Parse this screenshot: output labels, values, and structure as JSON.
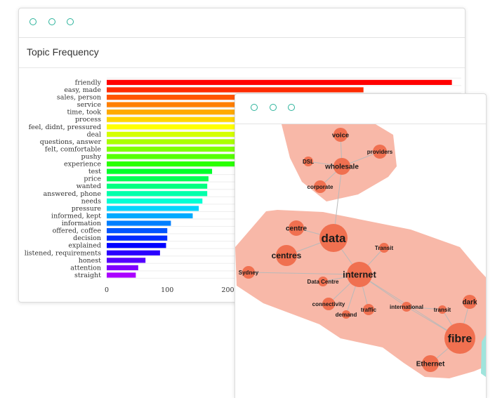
{
  "window_topic": {
    "title": "Topic Frequency"
  },
  "chart_data": {
    "type": "bar",
    "orientation": "horizontal",
    "title": "Topic Frequency",
    "categories": [
      "friendly",
      "easy, made",
      "sales, person",
      "service",
      "time, took",
      "process",
      "feel, didnt, pressured",
      "deal",
      "questions, answer",
      "felt, comfortable",
      "pushy",
      "experience",
      "test",
      "price",
      "wanted",
      "answered, phone",
      "needs",
      "pressure",
      "informed, kept",
      "information",
      "offered, coffee",
      "decision",
      "explained",
      "listened, requirements",
      "honest",
      "attention",
      "straight"
    ],
    "values": [
      570,
      424,
      380,
      372,
      362,
      352,
      344,
      336,
      236,
      232,
      230,
      226,
      174,
      168,
      166,
      166,
      158,
      152,
      142,
      106,
      100,
      100,
      98,
      88,
      64,
      52,
      48
    ],
    "colors": [
      "#ff0000",
      "#ff2a00",
      "#ff5500",
      "#ff7f00",
      "#ffaa00",
      "#ffd400",
      "#ffff00",
      "#d4ff00",
      "#aaff00",
      "#7fff00",
      "#55ff00",
      "#2aff00",
      "#00ff2a",
      "#00ff55",
      "#00ff7f",
      "#00ffaa",
      "#00ffd4",
      "#00d4ff",
      "#00aaff",
      "#007fff",
      "#0055ff",
      "#002aff",
      "#0000ff",
      "#2a00ff",
      "#5500ff",
      "#7f00ff",
      "#aa00ff"
    ],
    "x_ticks": [
      "0",
      "100",
      "200"
    ],
    "xlim": [
      0,
      600
    ],
    "grid": true
  },
  "network": {
    "cluster_color": "#f8b8a8",
    "node_color": "#f07050",
    "nodes": [
      {
        "id": "voice",
        "label": "voice"
      },
      {
        "id": "providers",
        "label": "providers"
      },
      {
        "id": "dsl",
        "label": "DSL"
      },
      {
        "id": "wholesale",
        "label": "wholesale"
      },
      {
        "id": "corporate",
        "label": "corporate"
      },
      {
        "id": "centre",
        "label": "centre"
      },
      {
        "id": "data",
        "label": "data"
      },
      {
        "id": "centres",
        "label": "centres"
      },
      {
        "id": "transit_cap",
        "label": "Transit"
      },
      {
        "id": "sydney",
        "label": "Sydney"
      },
      {
        "id": "internet",
        "label": "internet"
      },
      {
        "id": "datacentre",
        "label": "Data Centre"
      },
      {
        "id": "connectivity",
        "label": "connectivity"
      },
      {
        "id": "demand",
        "label": "demand"
      },
      {
        "id": "traffic",
        "label": "traffic"
      },
      {
        "id": "international",
        "label": "international"
      },
      {
        "id": "transit",
        "label": "transit"
      },
      {
        "id": "dark",
        "label": "dark"
      },
      {
        "id": "fibre",
        "label": "fibre"
      },
      {
        "id": "ethernet",
        "label": "Ethernet"
      }
    ]
  }
}
